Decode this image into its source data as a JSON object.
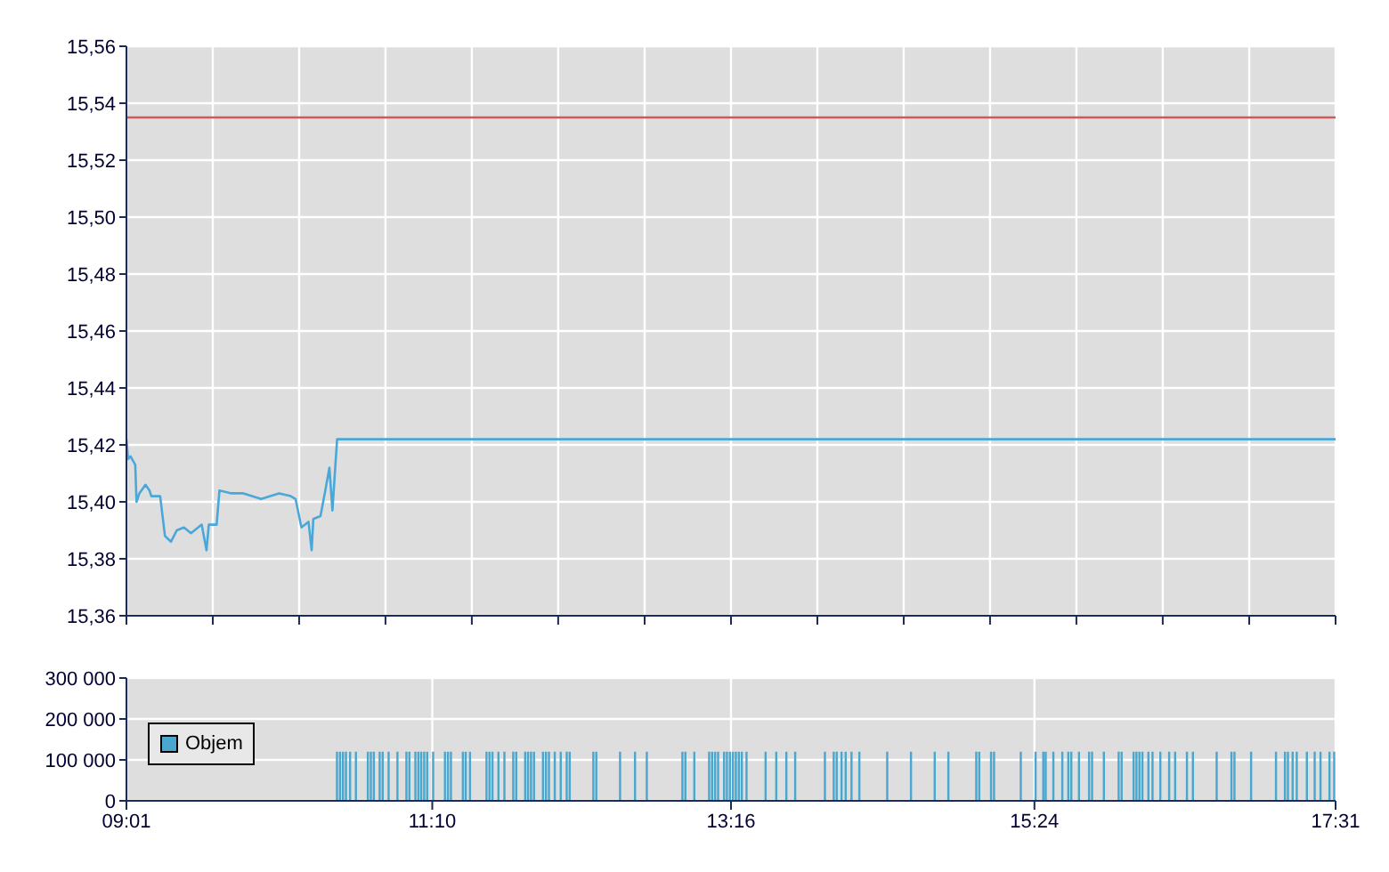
{
  "chart_data": [
    {
      "type": "line",
      "xlim": [
        9.017,
        17.517
      ],
      "xticks": [
        {
          "value": 9.017,
          "label": null
        },
        {
          "value": 9.624,
          "label": null
        },
        {
          "value": 10.231,
          "label": null
        },
        {
          "value": 10.838,
          "label": null
        },
        {
          "value": 11.445,
          "label": null
        },
        {
          "value": 12.052,
          "label": null
        },
        {
          "value": 12.66,
          "label": null
        },
        {
          "value": 13.267,
          "label": null
        },
        {
          "value": 13.874,
          "label": null
        },
        {
          "value": 14.481,
          "label": null
        },
        {
          "value": 15.088,
          "label": null
        },
        {
          "value": 15.695,
          "label": null
        },
        {
          "value": 16.302,
          "label": null
        },
        {
          "value": 16.91,
          "label": null
        },
        {
          "value": 17.517,
          "label": null
        }
      ],
      "ylim": [
        15.36,
        15.56
      ],
      "yticks": [
        {
          "value": 15.36,
          "label": "15,36"
        },
        {
          "value": 15.38,
          "label": "15,38"
        },
        {
          "value": 15.4,
          "label": "15,40"
        },
        {
          "value": 15.42,
          "label": "15,42"
        },
        {
          "value": 15.44,
          "label": "15,44"
        },
        {
          "value": 15.46,
          "label": "15,46"
        },
        {
          "value": 15.48,
          "label": "15,48"
        },
        {
          "value": 15.5,
          "label": "15,50"
        },
        {
          "value": 15.52,
          "label": "15,52"
        },
        {
          "value": 15.54,
          "label": "15,54"
        },
        {
          "value": 15.56,
          "label": "15,56"
        }
      ],
      "tick_labels": "y",
      "grid": true,
      "marker": "none",
      "line_style": "solid",
      "ref_lines": [
        {
          "axis": "y",
          "value": 15.535,
          "color": "#d05a5a"
        }
      ],
      "x": [
        9.017,
        9.029,
        9.046,
        9.079,
        9.088,
        9.108,
        9.151,
        9.179,
        9.192,
        9.254,
        9.288,
        9.33,
        9.371,
        9.421,
        9.471,
        9.546,
        9.58,
        9.596,
        9.651,
        9.671,
        9.755,
        9.839,
        9.964,
        10.09,
        10.172,
        10.206,
        10.247,
        10.297,
        10.319,
        10.331,
        10.381,
        10.415,
        10.444,
        10.465,
        10.498,
        17.517
      ],
      "series": [
        {
          "color": "#4aa8d8",
          "values": [
            15.422,
            15.415,
            15.416,
            15.413,
            15.4,
            15.403,
            15.406,
            15.404,
            15.402,
            15.402,
            15.388,
            15.386,
            15.39,
            15.391,
            15.389,
            15.392,
            15.383,
            15.392,
            15.392,
            15.404,
            15.403,
            15.403,
            15.401,
            15.403,
            15.402,
            15.401,
            15.391,
            15.393,
            15.383,
            15.394,
            15.395,
            15.404,
            15.412,
            15.397,
            15.422,
            15.422
          ]
        }
      ]
    },
    {
      "type": "bar",
      "xlim": [
        9.017,
        17.517
      ],
      "xticks": [
        {
          "value": 9.017,
          "label": "09:01"
        },
        {
          "value": 11.167,
          "label": "11:10"
        },
        {
          "value": 13.267,
          "label": "13:16"
        },
        {
          "value": 15.4,
          "label": "15:24"
        },
        {
          "value": 17.517,
          "label": "17:31"
        }
      ],
      "ylim": [
        0,
        300000
      ],
      "yticks": [
        {
          "value": 0,
          "label": "0"
        },
        {
          "value": 100000,
          "label": "100 000"
        },
        {
          "value": 200000,
          "label": "200 000"
        },
        {
          "value": 300000,
          "label": "300 000"
        }
      ],
      "grid": true,
      "legend": "left",
      "x": [
        10.498,
        10.519,
        10.54,
        10.561,
        10.59,
        10.631,
        10.715,
        10.736,
        10.757,
        10.798,
        10.819,
        10.861,
        10.923,
        10.986,
        11.007,
        11.049,
        11.07,
        11.09,
        11.111,
        11.132,
        11.174,
        11.257,
        11.278,
        11.299,
        11.383,
        11.403,
        11.433,
        11.549,
        11.57,
        11.591,
        11.633,
        11.675,
        11.737,
        11.758,
        11.821,
        11.841,
        11.862,
        11.883,
        11.946,
        11.967,
        11.988,
        12.029,
        12.071,
        12.113,
        12.134,
        12.3,
        12.321,
        12.488,
        12.593,
        12.676,
        12.926,
        12.947,
        13.01,
        13.114,
        13.135,
        13.156,
        13.177,
        13.219,
        13.239,
        13.26,
        13.281,
        13.302,
        13.323,
        13.344,
        13.377,
        13.511,
        13.586,
        13.657,
        13.719,
        13.928,
        13.99,
        14.011,
        14.045,
        14.074,
        14.115,
        14.17,
        14.366,
        14.533,
        14.7,
        14.796,
        14.992,
        15.013,
        15.096,
        15.117,
        15.305,
        15.409,
        15.463,
        15.48,
        15.534,
        15.597,
        15.639,
        15.66,
        15.714,
        15.785,
        15.806,
        15.889,
        15.993,
        16.014,
        16.098,
        16.118,
        16.139,
        16.16,
        16.202,
        16.231,
        16.286,
        16.348,
        16.39,
        16.473,
        16.515,
        16.682,
        16.786,
        16.807,
        16.924,
        17.099,
        17.162,
        17.183,
        17.216,
        17.245,
        17.316,
        17.371,
        17.412,
        17.475,
        17.508
      ],
      "series": [
        {
          "name": "Objem",
          "color": "#4aa8d0",
          "values": [
            120000,
            120000,
            120000,
            120000,
            120000,
            120000,
            120000,
            120000,
            120000,
            120000,
            120000,
            120000,
            120000,
            120000,
            120000,
            120000,
            120000,
            120000,
            120000,
            120000,
            120000,
            120000,
            120000,
            120000,
            120000,
            120000,
            120000,
            120000,
            120000,
            120000,
            120000,
            120000,
            120000,
            120000,
            120000,
            120000,
            120000,
            120000,
            120000,
            120000,
            120000,
            120000,
            120000,
            120000,
            120000,
            120000,
            120000,
            120000,
            120000,
            120000,
            120000,
            120000,
            120000,
            120000,
            120000,
            120000,
            120000,
            120000,
            120000,
            120000,
            120000,
            120000,
            120000,
            120000,
            120000,
            120000,
            120000,
            120000,
            120000,
            120000,
            120000,
            120000,
            120000,
            120000,
            120000,
            120000,
            120000,
            120000,
            120000,
            120000,
            120000,
            120000,
            120000,
            120000,
            120000,
            120000,
            120000,
            120000,
            120000,
            120000,
            120000,
            120000,
            120000,
            120000,
            120000,
            120000,
            120000,
            120000,
            120000,
            120000,
            120000,
            120000,
            120000,
            120000,
            120000,
            120000,
            120000,
            120000,
            120000,
            120000,
            120000,
            120000,
            120000,
            120000,
            120000,
            120000,
            120000,
            120000,
            120000,
            120000,
            120000,
            120000,
            120000
          ]
        }
      ]
    }
  ]
}
